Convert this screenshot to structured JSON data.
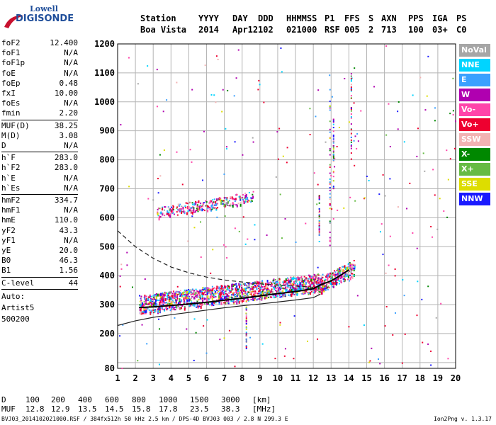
{
  "logo": {
    "line1": "Lowell",
    "line2": "DIGISONDE"
  },
  "header": {
    "labels": [
      "Station",
      "YYYY",
      "DAY",
      "DDD",
      "HHMMSS",
      "P1",
      "FFS",
      "S",
      "AXN",
      "PPS",
      "IGA",
      "PS"
    ],
    "values": [
      "Boa Vista",
      "2014",
      "Apr12",
      "102",
      "021000",
      "RSF",
      "005",
      "2",
      "713",
      "100",
      "03+",
      "C0"
    ]
  },
  "params": {
    "group1": [
      {
        "label": "foF2",
        "value": "12.400"
      },
      {
        "label": "foF1",
        "value": "N/A"
      },
      {
        "label": "foF1p",
        "value": "N/A"
      },
      {
        "label": "foE",
        "value": "N/A"
      },
      {
        "label": "foEp",
        "value": "0.48"
      },
      {
        "label": "fxI",
        "value": "10.00"
      },
      {
        "label": "foEs",
        "value": "N/A"
      },
      {
        "label": "fmin",
        "value": "2.20"
      }
    ],
    "group2": [
      {
        "label": "MUF(D)",
        "value": "38.25"
      },
      {
        "label": "M(D)",
        "value": "3.08"
      },
      {
        "label": "D",
        "value": "N/A"
      }
    ],
    "group3": [
      {
        "label": "h`F",
        "value": "283.0"
      },
      {
        "label": "h`F2",
        "value": "283.0"
      },
      {
        "label": "h`E",
        "value": "N/A"
      },
      {
        "label": "h`Es",
        "value": "N/A"
      }
    ],
    "group4": [
      {
        "label": "hmF2",
        "value": "334.7"
      },
      {
        "label": "hmF1",
        "value": "N/A"
      },
      {
        "label": "hmE",
        "value": "110.0"
      },
      {
        "label": "yF2",
        "value": "43.3"
      },
      {
        "label": "yF1",
        "value": "N/A"
      },
      {
        "label": "yE",
        "value": "20.0"
      },
      {
        "label": "B0",
        "value": "46.3"
      },
      {
        "label": "B1",
        "value": "1.56"
      }
    ],
    "clevel": {
      "label": "C-level",
      "value": "44"
    },
    "auto": [
      "Auto:",
      "Artist5",
      "500200"
    ]
  },
  "legend": [
    {
      "label": "NoVal",
      "color": "#a6a6a6"
    },
    {
      "label": "NNE",
      "color": "#00d4ff"
    },
    {
      "label": "E",
      "color": "#3aa0ff"
    },
    {
      "label": "W",
      "color": "#b000b0"
    },
    {
      "label": "Vo-",
      "color": "#ff44aa"
    },
    {
      "label": "Vo+",
      "color": "#ee0030"
    },
    {
      "label": "SSW",
      "color": "#f2b3b3"
    },
    {
      "label": "X-",
      "color": "#008800"
    },
    {
      "label": "X+",
      "color": "#66bb44"
    },
    {
      "label": "SSE",
      "color": "#dddd00"
    },
    {
      "label": "NNW",
      "color": "#1a1aff"
    }
  ],
  "chart_data": {
    "type": "scatter",
    "xlim": [
      1,
      20
    ],
    "ylim": [
      80,
      1200
    ],
    "x_ticks": [
      1,
      2,
      3,
      4,
      5,
      6,
      7,
      8,
      9,
      10,
      11,
      12,
      13,
      14,
      15,
      16,
      17,
      18,
      19,
      20
    ],
    "y_ticks": [
      80,
      100,
      200,
      300,
      400,
      500,
      600,
      700,
      800,
      900,
      1000,
      1100,
      1200
    ],
    "y_tick_labels": [
      "80",
      "",
      "200",
      "300",
      "400",
      "500",
      "600",
      "700",
      "800",
      "900",
      "1000",
      "1100",
      "1200"
    ],
    "grid": true,
    "legend_position": "right",
    "series": [
      {
        "style": "solid",
        "points": [
          [
            1,
            228
          ],
          [
            2,
            244
          ],
          [
            3,
            256
          ],
          [
            4,
            265
          ],
          [
            5,
            273
          ],
          [
            6,
            281
          ],
          [
            7,
            289
          ],
          [
            8,
            296
          ],
          [
            9,
            302
          ],
          [
            10,
            309
          ],
          [
            11,
            316
          ],
          [
            12,
            324
          ],
          [
            12.4,
            336
          ]
        ]
      },
      {
        "style": "dashed",
        "points": [
          [
            1,
            555
          ],
          [
            2,
            500
          ],
          [
            3,
            460
          ],
          [
            4,
            430
          ],
          [
            5,
            410
          ],
          [
            6,
            395
          ],
          [
            7,
            385
          ],
          [
            8,
            378
          ],
          [
            9,
            372
          ],
          [
            10,
            367
          ],
          [
            11,
            364
          ],
          [
            12,
            360
          ]
        ]
      },
      {
        "style": "trace",
        "points": [
          [
            2.2,
            290
          ],
          [
            3,
            292
          ],
          [
            4,
            297
          ],
          [
            5,
            302
          ],
          [
            6,
            308
          ],
          [
            7,
            315
          ],
          [
            8,
            322
          ],
          [
            9,
            330
          ],
          [
            10,
            338
          ],
          [
            11,
            345
          ],
          [
            12,
            355
          ],
          [
            12.4,
            368
          ],
          [
            13,
            382
          ],
          [
            13.5,
            400
          ],
          [
            14,
            420
          ]
        ]
      }
    ],
    "echo_bands": [
      {
        "x": [
          2.2,
          12.5
        ],
        "y_start": [
          292,
          368
        ],
        "thickness": 65,
        "n": 1400
      },
      {
        "x": [
          3.2,
          8.6
        ],
        "y_start": [
          612,
          668
        ],
        "thickness": 38,
        "n": 280
      },
      {
        "x": [
          12.2,
          14.3
        ],
        "y_start": [
          355,
          420
        ],
        "thickness": 55,
        "n": 260
      }
    ]
  },
  "footer": {
    "d_label": "D",
    "d_values": [
      "100",
      "200",
      "400",
      "600",
      "800",
      "1000",
      "1500",
      "3000"
    ],
    "d_unit": "[km]",
    "muf_label": "MUF",
    "muf_values": [
      "12.8",
      "12.9",
      "13.5",
      "14.5",
      "15.8",
      "17.8",
      "23.5",
      "38.3"
    ],
    "muf_unit": "[MHz]",
    "file_info": "BVJ03_2014102021000.RSF / 384fx512h 50 kHz 2.5 km / DPS-4D BVJ03 003 / 2.8 N 299.3 E",
    "version": "Ion2Png v. 1.3.17"
  }
}
